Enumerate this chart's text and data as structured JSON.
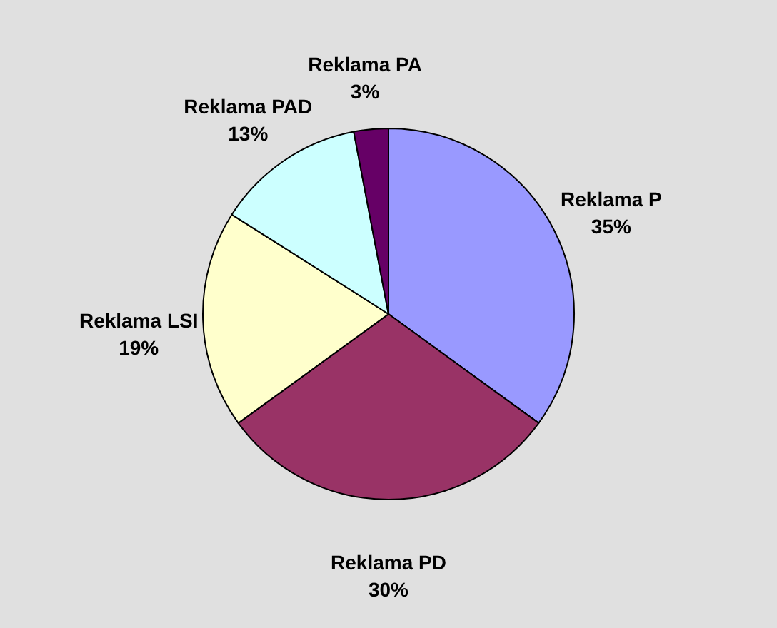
{
  "chart_data": {
    "type": "pie",
    "categories": [
      "Reklama P",
      "Reklama PD",
      "Reklama LSI",
      "Reklama PAD",
      "Reklama PA"
    ],
    "values": [
      35,
      30,
      19,
      13,
      3
    ],
    "value_labels": [
      "35%",
      "30%",
      "19%",
      "13%",
      "3%"
    ],
    "colors": [
      "#9999ff",
      "#993366",
      "#ffffcc",
      "#ccffff",
      "#660066"
    ],
    "legend": false
  }
}
